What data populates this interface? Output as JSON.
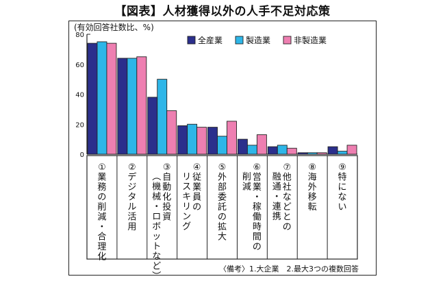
{
  "chart_data": {
    "type": "bar",
    "title": "【図表】人材獲得以外の人手不足対応策",
    "ylabel": "(有効回答社数比、%)",
    "ylim": [
      0,
      80
    ],
    "yticks": [
      0,
      20,
      40,
      60,
      80
    ],
    "grid": false,
    "legend_position": "top-right",
    "categories": [
      {
        "num": "①",
        "label": "業務の削減・合理化"
      },
      {
        "num": "②",
        "label": "デジタル活用"
      },
      {
        "num": "③",
        "label": "自動化投資",
        "label2": "（機械・ロボットなど）"
      },
      {
        "num": "④",
        "label": "従業員の",
        "label2": "リスキリング"
      },
      {
        "num": "⑤",
        "label": "外部委託の拡大"
      },
      {
        "num": "⑥",
        "label": "営業・稼働時間の",
        "label2": "削減"
      },
      {
        "num": "⑦",
        "label": "他社などとの",
        "label2": "融通・連携"
      },
      {
        "num": "⑧",
        "label": "海外移転"
      },
      {
        "num": "⑨",
        "label": "特にない"
      }
    ],
    "series": [
      {
        "name": "全産業",
        "color": "#2b2f8c",
        "values": [
          74,
          64,
          38,
          19,
          18,
          10,
          5,
          1,
          5
        ]
      },
      {
        "name": "製造業",
        "color": "#2eb6e8",
        "values": [
          75,
          64,
          50,
          20,
          12,
          6,
          6,
          1,
          2
        ]
      },
      {
        "name": "非製造業",
        "color": "#ee7fb1",
        "values": [
          74,
          65,
          29,
          18,
          22,
          13,
          4,
          1,
          6
        ]
      }
    ],
    "note": "〈備考〉1.大企業　2.最大3つの複数回答"
  }
}
